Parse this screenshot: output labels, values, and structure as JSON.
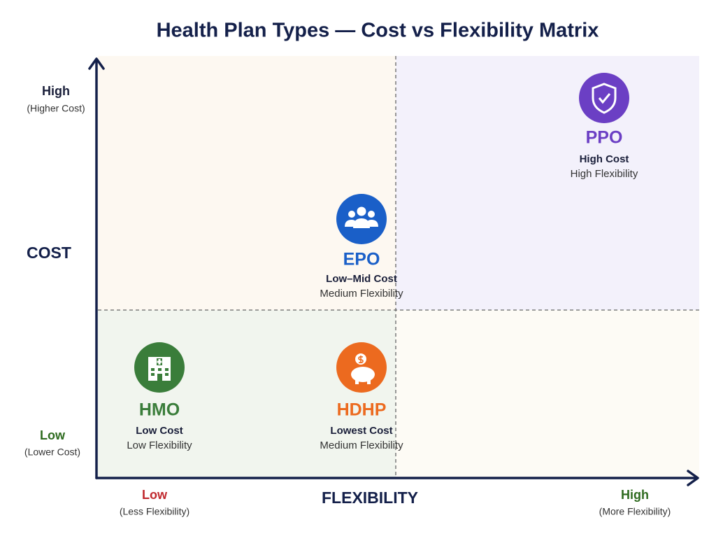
{
  "title": "Health Plan Types — Cost vs Flexibility Matrix",
  "y_axis": {
    "label": "COST",
    "high": "High",
    "high_note": "(Higher Cost)",
    "low": "Low",
    "low_note": "(Lower Cost)"
  },
  "x_axis": {
    "label": "FLEXIBILITY",
    "low": "Low",
    "low_note": "(Less Flexibility)",
    "high": "High",
    "high_note": "(More Flexibility)"
  },
  "nodes": [
    {
      "name": "PPO",
      "cost": "High Cost",
      "flexibility": "High Flexibility"
    },
    {
      "name": "EPO",
      "cost": "Low–Mid Cost",
      "flexibility": "Medium Flexibility"
    },
    {
      "name": "HMO",
      "cost": "Low Cost",
      "flexibility": "Low Flexibility"
    },
    {
      "name": "HDHP",
      "cost": "Lowest Cost",
      "flexibility": "Medium Flexibility"
    }
  ]
}
